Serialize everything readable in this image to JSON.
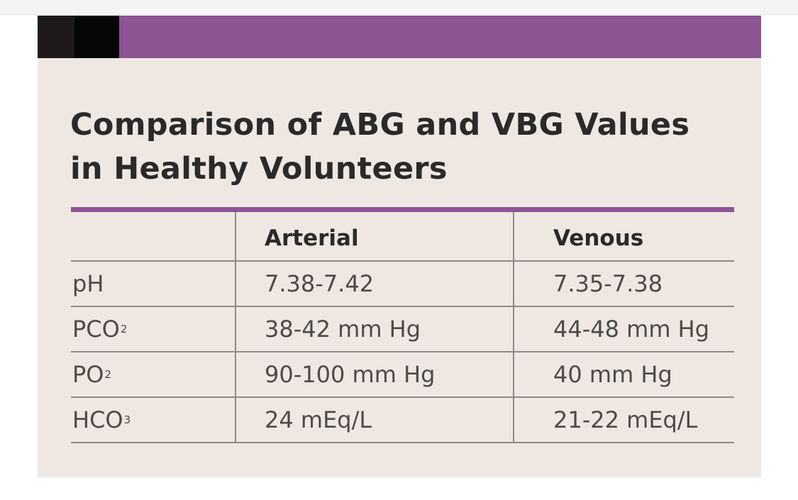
{
  "title": {
    "line1": "Comparison of ABG and VBG Values",
    "line2": "in Healthy Volunteers"
  },
  "table": {
    "columns": [
      "",
      "Arterial",
      "Venous"
    ],
    "rows": [
      {
        "parameter": "pH",
        "subscript": "",
        "arterial": "7.38-7.42",
        "venous": "7.35-7.38"
      },
      {
        "parameter": "PCO",
        "subscript": "2",
        "arterial": "38-42 mm Hg",
        "venous": "44-48 mm Hg"
      },
      {
        "parameter": "PO",
        "subscript": "2",
        "arterial": "90-100 mm Hg",
        "venous": "40 mm Hg"
      },
      {
        "parameter": "HCO",
        "subscript": "3",
        "arterial": "24 mEq/L",
        "venous": "21-22 mEq/L"
      }
    ]
  },
  "colors": {
    "accent_purple": "#8d5594",
    "card_background": "#efe8e2",
    "title_text": "#2b2a2a",
    "body_text": "#4d4a48",
    "rule_gray": "#8e8a86"
  }
}
